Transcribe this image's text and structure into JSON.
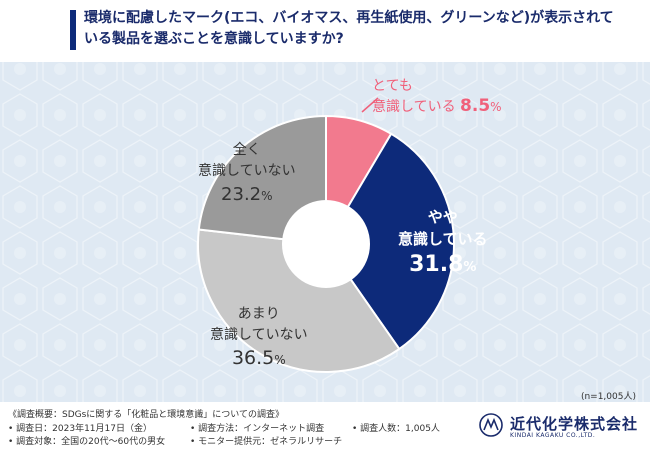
{
  "header": {
    "title": "環境に配慮したマーク(エコ、バイオマス、再生紙使用、グリーンなど)が表示されている製品を選ぶことを意識していますか?"
  },
  "chart_data": {
    "type": "pie",
    "style": "donut",
    "categories": [
      "とても意識している",
      "やや意識している",
      "あまり意識していない",
      "全く意識していない"
    ],
    "values": [
      8.5,
      31.8,
      36.5,
      23.2
    ],
    "unit": "%",
    "colors": [
      "#f27a8e",
      "#0d2a7a",
      "#c8c8c8",
      "#9a9a9a"
    ],
    "labels": [
      {
        "line1": "とても",
        "line2": "意識している",
        "value": "8.5",
        "unit": "%",
        "color": "#f0607a"
      },
      {
        "line1": "やや",
        "line2": "意識している",
        "value": "31.8",
        "unit": "%",
        "color": "#0d2a7a"
      },
      {
        "line1": "あまり",
        "line2": "意識していない",
        "value": "36.5",
        "unit": "%",
        "color": "#333333"
      },
      {
        "line1": "全く",
        "line2": "意識していない",
        "value": "23.2",
        "unit": "%",
        "color": "#333333"
      }
    ]
  },
  "sample_note": "(n=1,005人)",
  "survey": {
    "overview": "《調査概要：SDGsに関する「化粧品と環境意識」についての調査》",
    "date": "• 調査日：2023年11月17日（金）",
    "method": "• 調査方法：インターネット調査",
    "count": "• 調査人数：1,005人",
    "target": "• 調査対象：全国の20代～60代の男女",
    "provider": "• モニター提供元：ゼネラルリサーチ"
  },
  "logo": {
    "name": "近代化学株式会社",
    "sub": "KINDAI KAGAKU CO.,LTD."
  }
}
